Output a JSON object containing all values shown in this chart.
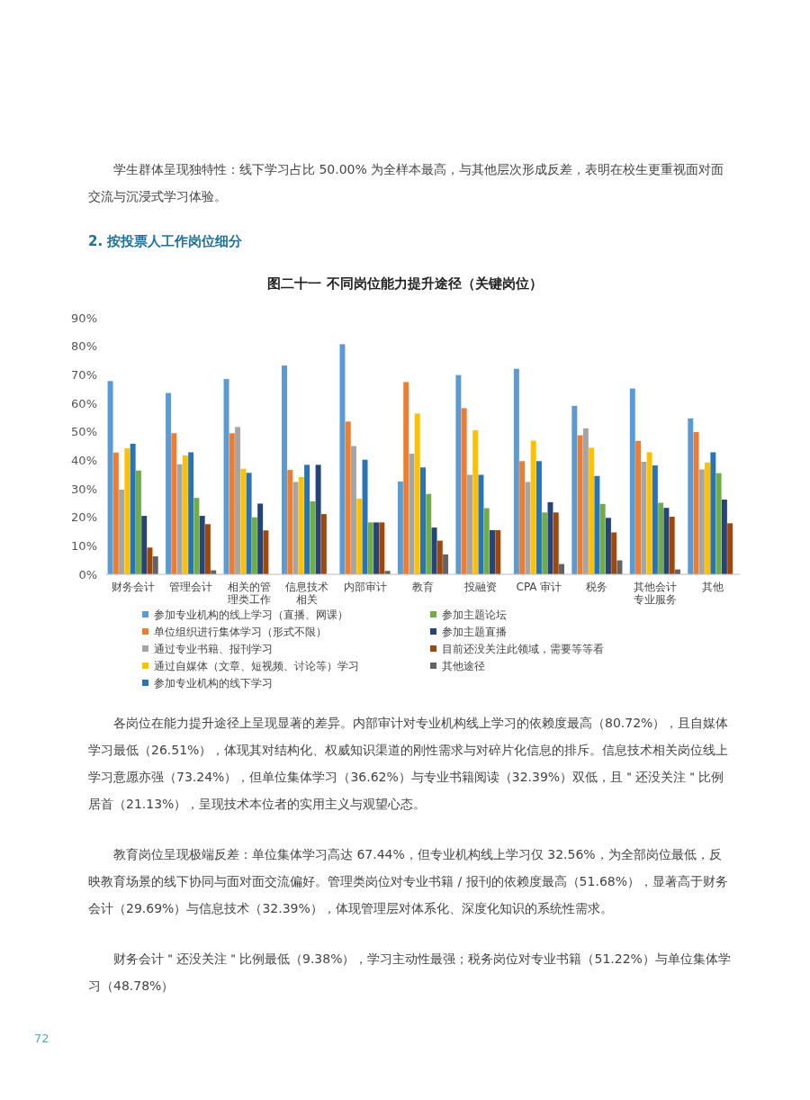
{
  "chart_data": {
    "type": "bar",
    "title": "图二十一 不同岗位能力提升途径（关键岗位）",
    "categories": [
      "财务会计",
      "管理会计",
      "相关的管理类工作",
      "信息技术相关",
      "内部审计",
      "教育",
      "投融资",
      "CPA 审计",
      "税务",
      "其他会计专业服务",
      "其他"
    ],
    "series": [
      {
        "name": "参加专业机构的线上学习（直播、网课）",
        "color": "#5b9bd5",
        "values": [
          67.8,
          63.6,
          68.5,
          73.24,
          80.72,
          32.56,
          69.9,
          72.1,
          59.1,
          65.2,
          54.7
        ]
      },
      {
        "name": "单位组织进行集体学习（形式不限）",
        "color": "#ed7d31",
        "values": [
          42.7,
          49.5,
          49.5,
          36.62,
          53.6,
          67.44,
          58.3,
          39.7,
          48.78,
          46.8,
          49.9
        ]
      },
      {
        "name": "通过专业书籍、报刊学习",
        "color": "#a5a5a5",
        "values": [
          29.69,
          38.6,
          51.68,
          32.39,
          45.0,
          42.3,
          34.9,
          32.4,
          51.22,
          39.5,
          36.8
        ]
      },
      {
        "name": "通过自媒体（文章、短视频、讨论等）学习",
        "color": "#ffc000",
        "values": [
          44.2,
          41.7,
          37.0,
          34.1,
          26.51,
          56.4,
          50.5,
          46.9,
          44.4,
          42.8,
          39.2
        ]
      },
      {
        "name": "参加专业机构的线下学习",
        "color": "#2874b8",
        "values": [
          45.8,
          42.8,
          35.6,
          38.4,
          40.2,
          37.5,
          34.9,
          39.7,
          34.5,
          38.2,
          42.8
        ]
      },
      {
        "name": "参加主题论坛",
        "color": "#70ad47",
        "values": [
          36.4,
          26.8,
          20.0,
          25.6,
          18.2,
          28.2,
          23.2,
          21.7,
          24.7,
          25.1,
          35.5
        ]
      },
      {
        "name": "参加主题直播",
        "color": "#264478",
        "values": [
          20.5,
          20.5,
          24.8,
          38.4,
          18.2,
          16.4,
          15.5,
          25.3,
          19.8,
          23.3,
          26.2
        ]
      },
      {
        "name": "目前还没关注此领域，需要等等看",
        "color": "#9e480e",
        "values": [
          9.38,
          17.6,
          15.4,
          21.13,
          18.2,
          11.8,
          15.5,
          21.7,
          14.7,
          20.2,
          17.9
        ]
      },
      {
        "name": "其他途径",
        "color": "#636363",
        "values": [
          6.3,
          1.4,
          null,
          0,
          1.2,
          7.0,
          0,
          3.6,
          4.9,
          1.7,
          0
        ]
      }
    ],
    "ylim": [
      0,
      90
    ],
    "yticks": [
      {
        "value": 0,
        "label": "0%"
      },
      {
        "value": 10,
        "label": "10%"
      },
      {
        "value": 20,
        "label": "20%"
      },
      {
        "value": 30,
        "label": "30%"
      },
      {
        "value": 40,
        "label": "40%"
      },
      {
        "value": 50,
        "label": "50%"
      },
      {
        "value": 60,
        "label": "60%"
      },
      {
        "value": 70,
        "label": "70%"
      },
      {
        "value": 80,
        "label": "80%"
      },
      {
        "value": 90,
        "label": "90%"
      }
    ],
    "legend": "bottom",
    "annotations": [
      "学生群体呈现独特性：线下学习占比 50.00% 为全样本最高，与其他层次形成反差，表明在校生更重视面对面交流与沉浸式学习体验。",
      "2. 按投票人工作岗位细分",
      "各岗位在能力提升途径上呈现显著的差异。内部审计对专业机构线上学习的依赖度最高（80.72%），且自媒体学习最低（26.51%），体现其对结构化、权威知识渠道的刚性需求与对碎片化信息的排斥。信息技术相关岗位线上学习意愿亦强（73.24%），但单位集体学习（36.62%）与专业书籍阅读（32.39%）双低，且＂还没关注＂比例居首（21.13%），呈现技术本位者的实用主义与观望心态。",
      "教育岗位呈现极端反差：单位集体学习高达 67.44%，但专业机构线上学习仅 32.56%，为全部岗位最低，反映教育场景的线下协同与面对面交流偏好。管理类岗位对专业书籍 / 报刊的依赖度最高（51.68%），显著高于财务会计（29.69%）与信息技术（32.39%），体现管理层对体系化、深度化知识的系统性需求。",
      "财务会计＂还没关注＂比例最低（9.38%），学习主动性最强；税务岗位对专业书籍（51.22%）与单位集体学习（48.78%）",
      "72"
    ]
  }
}
